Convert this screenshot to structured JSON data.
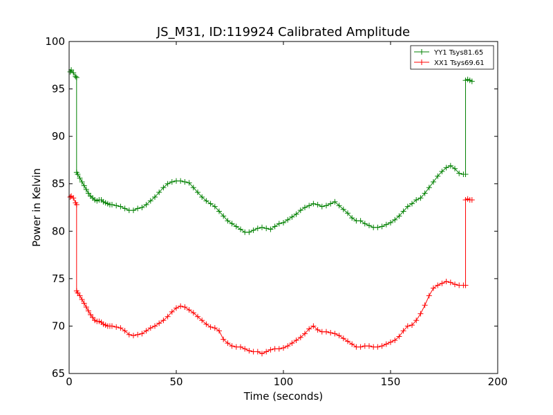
{
  "chart_data": {
    "type": "line",
    "title": "JS_M31, ID:119924 Calibrated Amplitude",
    "xlabel": "Time (seconds)",
    "ylabel": "Power in Kelvin",
    "xlim": [
      0,
      200
    ],
    "ylim": [
      65,
      100
    ],
    "xticks": [
      "0",
      "50",
      "100",
      "150",
      "200"
    ],
    "yticks": [
      "65",
      "70",
      "75",
      "80",
      "85",
      "90",
      "95",
      "100"
    ],
    "grid": false,
    "legend_position": "top-right",
    "series": [
      {
        "name": "YY1 Tsys81.65",
        "color": "#008000",
        "marker": "+",
        "x": [
          0.5,
          1,
          2,
          3,
          3.5,
          3.5,
          4,
          5,
          6,
          7,
          8,
          9,
          10,
          11,
          12,
          13,
          14,
          15,
          16,
          17,
          18,
          19,
          20,
          22,
          24,
          26,
          28,
          30,
          32,
          34,
          36,
          38,
          40,
          42,
          44,
          46,
          48,
          50,
          52,
          54,
          56,
          58,
          60,
          62,
          64,
          66,
          68,
          70,
          72,
          74,
          76,
          78,
          80,
          82,
          84,
          86,
          88,
          90,
          92,
          94,
          96,
          98,
          100,
          102,
          104,
          106,
          108,
          110,
          112,
          114,
          116,
          118,
          120,
          122,
          124,
          126,
          128,
          130,
          132,
          134,
          136,
          138,
          140,
          142,
          144,
          146,
          148,
          150,
          152,
          154,
          156,
          158,
          160,
          162,
          164,
          166,
          168,
          170,
          172,
          174,
          176,
          178,
          180,
          182,
          184,
          185,
          185,
          186,
          187,
          188
        ],
        "y": [
          96.8,
          97,
          96.7,
          96.3,
          96.2,
          86.2,
          86,
          85.6,
          85.2,
          84.8,
          84.4,
          84,
          83.7,
          83.5,
          83.3,
          83.2,
          83.3,
          83.3,
          83.1,
          83,
          82.9,
          82.8,
          82.8,
          82.7,
          82.6,
          82.4,
          82.2,
          82.2,
          82.4,
          82.5,
          82.8,
          83.2,
          83.6,
          84.1,
          84.6,
          85,
          85.2,
          85.3,
          85.3,
          85.2,
          85.1,
          84.6,
          84.1,
          83.6,
          83.2,
          82.9,
          82.6,
          82.1,
          81.6,
          81.1,
          80.8,
          80.5,
          80.2,
          79.9,
          79.9,
          80.1,
          80.3,
          80.4,
          80.3,
          80.2,
          80.5,
          80.8,
          80.9,
          81.2,
          81.5,
          81.8,
          82.2,
          82.5,
          82.7,
          82.9,
          82.8,
          82.6,
          82.7,
          82.9,
          83.1,
          82.7,
          82.3,
          81.9,
          81.4,
          81.1,
          81.1,
          80.8,
          80.6,
          80.4,
          80.4,
          80.5,
          80.7,
          80.9,
          81.2,
          81.6,
          82.1,
          82.6,
          82.9,
          83.3,
          83.5,
          84,
          84.6,
          85.2,
          85.8,
          86.3,
          86.7,
          86.9,
          86.6,
          86.1,
          86,
          86,
          95.9,
          96,
          95.9,
          95.8
        ]
      },
      {
        "name": "XX1 Tsys69.61",
        "color": "#ff0000",
        "marker": "+",
        "x": [
          0.5,
          1,
          2,
          3,
          3.5,
          3.5,
          4,
          5,
          6,
          7,
          8,
          9,
          10,
          11,
          12,
          13,
          14,
          15,
          16,
          17,
          18,
          19,
          20,
          22,
          24,
          26,
          28,
          30,
          32,
          34,
          36,
          38,
          40,
          42,
          44,
          46,
          48,
          50,
          52,
          54,
          56,
          58,
          60,
          62,
          64,
          66,
          68,
          70,
          72,
          74,
          76,
          78,
          80,
          82,
          84,
          86,
          88,
          90,
          92,
          94,
          96,
          98,
          100,
          102,
          104,
          106,
          108,
          110,
          112,
          114,
          116,
          118,
          120,
          122,
          124,
          126,
          128,
          130,
          132,
          134,
          136,
          138,
          140,
          142,
          144,
          146,
          148,
          150,
          152,
          154,
          156,
          158,
          160,
          162,
          164,
          166,
          168,
          170,
          172,
          174,
          176,
          178,
          180,
          182,
          184,
          185,
          185,
          186,
          187,
          188
        ],
        "y": [
          83.6,
          83.7,
          83.5,
          83,
          82.8,
          73.7,
          73.5,
          73.2,
          72.8,
          72.4,
          72,
          71.6,
          71.2,
          70.9,
          70.6,
          70.5,
          70.5,
          70.4,
          70.2,
          70.1,
          70,
          70,
          70,
          69.9,
          69.8,
          69.5,
          69.1,
          69,
          69.1,
          69.2,
          69.5,
          69.8,
          70,
          70.3,
          70.6,
          71,
          71.5,
          71.9,
          72.1,
          72,
          71.7,
          71.4,
          71,
          70.6,
          70.2,
          69.9,
          69.8,
          69.5,
          68.6,
          68.2,
          67.9,
          67.8,
          67.8,
          67.6,
          67.4,
          67.3,
          67.3,
          67.1,
          67.3,
          67.5,
          67.6,
          67.6,
          67.7,
          67.9,
          68.2,
          68.5,
          68.8,
          69.2,
          69.7,
          70,
          69.6,
          69.4,
          69.4,
          69.3,
          69.2,
          69,
          68.7,
          68.4,
          68.1,
          67.8,
          67.8,
          67.9,
          67.9,
          67.8,
          67.8,
          67.9,
          68.1,
          68.3,
          68.5,
          68.9,
          69.5,
          70,
          70.1,
          70.6,
          71.3,
          72.2,
          73.2,
          74,
          74.3,
          74.5,
          74.7,
          74.6,
          74.4,
          74.3,
          74.3,
          74.3,
          83.3,
          83.4,
          83.3,
          83.3
        ]
      }
    ]
  }
}
